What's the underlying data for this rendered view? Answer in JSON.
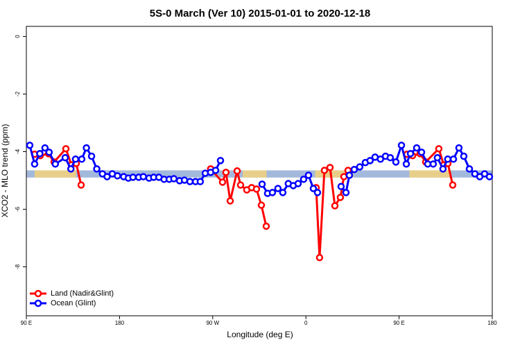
{
  "chart_data": {
    "type": "line",
    "title": "5S-0 March (Ver 10)   2015-01-01 to 2020-12-18",
    "x_label": "Longitude (deg E)",
    "y_label": "XCO2 - MLO trend (ppm)",
    "xlim": [
      90,
      540
    ],
    "xticks": [
      {
        "value": 90,
        "label": "90 E"
      },
      {
        "value": 180,
        "label": "180"
      },
      {
        "value": 270,
        "label": "90 W"
      },
      {
        "value": 360,
        "label": "0"
      },
      {
        "value": 450,
        "label": "90 E"
      },
      {
        "value": 540,
        "label": "180"
      }
    ],
    "ylim": [
      -9.7,
      0.35
    ],
    "yticks": [
      0,
      -2,
      -4,
      -6,
      -8
    ],
    "band_range": [
      -4.9,
      -4.65
    ],
    "band_color": "#a3b9dc",
    "land_ranges": [
      [
        98,
        138
      ],
      [
        299,
        322
      ],
      [
        369,
        406
      ],
      [
        460,
        500
      ]
    ],
    "land_color": "#f5d27a",
    "legend": "bottom-left",
    "series": [
      {
        "name": "Land (Nadir&Glint)",
        "color": "#ff0000",
        "x": [
          98,
          103.4,
          111.4,
          116.8,
          128.2,
          133.5,
          138.2,
          142.9,
          null,
          268,
          279.5,
          282.8,
          286.9,
          293.6,
          296.9,
          302.9,
          307.6,
          312.3,
          317,
          321.7,
          null,
          369.9,
          373.2,
          377.9,
          383.3,
          388,
          393.3,
          396.7,
          400.7,
          null,
          457.6,
          463,
          470.3,
          475.7,
          488.4,
          493.1,
          497.1,
          501.8
        ],
        "values": [
          -4.09,
          -4.14,
          -4.07,
          -4.36,
          -3.9,
          -4.46,
          -4.41,
          -5.16,
          null,
          -4.6,
          -5.06,
          -4.72,
          -5.71,
          -4.67,
          -5.16,
          -5.33,
          -5.25,
          -5.3,
          -5.86,
          -6.59,
          null,
          -5.25,
          -7.68,
          -4.65,
          -4.55,
          -5.88,
          -5.59,
          -4.87,
          -4.65,
          null,
          -4.09,
          -4.14,
          -4.07,
          -4.36,
          -3.9,
          -4.46,
          -4.41,
          -5.16
        ]
      },
      {
        "name": "Ocean (Glint)",
        "color": "#0000ff",
        "x": [
          93.3,
          98,
          103,
          108,
          112,
          118,
          127.5,
          133,
          137.5,
          143.5,
          148,
          153,
          158,
          163.5,
          168,
          173,
          178,
          184,
          188.5,
          193,
          198.5,
          203,
          208.5,
          213,
          218,
          223,
          228,
          232.5,
          238,
          242.7,
          248,
          253.4,
          258,
          262.8,
          268,
          272.8,
          277.5,
          null,
          317.7,
          323,
          327.7,
          333,
          337.7,
          343,
          347.8,
          352.5,
          357.8,
          362.5,
          367.2,
          371.2,
          null,
          394,
          398.7,
          402,
          406.7,
          412,
          417.4,
          422,
          426.8,
          432,
          436.9,
          441.5,
          446.9,
          452.3,
          457,
          461,
          467,
          471.7,
          477.7,
          483,
          487,
          492.4,
          497,
          502.5,
          507.8,
          512.5,
          517.9,
          523.2,
          527.9,
          532.6,
          537.3
        ],
        "values": [
          -3.78,
          -4.43,
          -4.07,
          -3.87,
          -4.02,
          -4.43,
          -4.21,
          -4.6,
          -4.26,
          -4.26,
          -3.87,
          -4.16,
          -4.6,
          -4.77,
          -4.87,
          -4.77,
          -4.84,
          -4.87,
          -4.92,
          -4.89,
          -4.89,
          -4.87,
          -4.92,
          -4.89,
          -4.89,
          -4.96,
          -4.96,
          -4.94,
          -5.01,
          -4.99,
          -5.04,
          -5.04,
          -5.04,
          -4.75,
          -4.72,
          -4.65,
          -4.31,
          null,
          -5.13,
          -5.45,
          -5.42,
          -5.28,
          -5.42,
          -5.11,
          -5.18,
          -5.11,
          -4.96,
          -4.82,
          -5.28,
          -5.42,
          null,
          -5.21,
          -5.42,
          -4.82,
          -4.62,
          -4.53,
          -4.38,
          -4.31,
          -4.19,
          -4.26,
          -4.16,
          -4.21,
          -4.36,
          -3.78,
          -4.43,
          -4.07,
          -3.87,
          -4.02,
          -4.43,
          -4.43,
          -4.21,
          -4.6,
          -4.26,
          -4.26,
          -3.87,
          -4.16,
          -4.6,
          -4.77,
          -4.87,
          -4.77,
          -4.87
        ]
      }
    ]
  }
}
